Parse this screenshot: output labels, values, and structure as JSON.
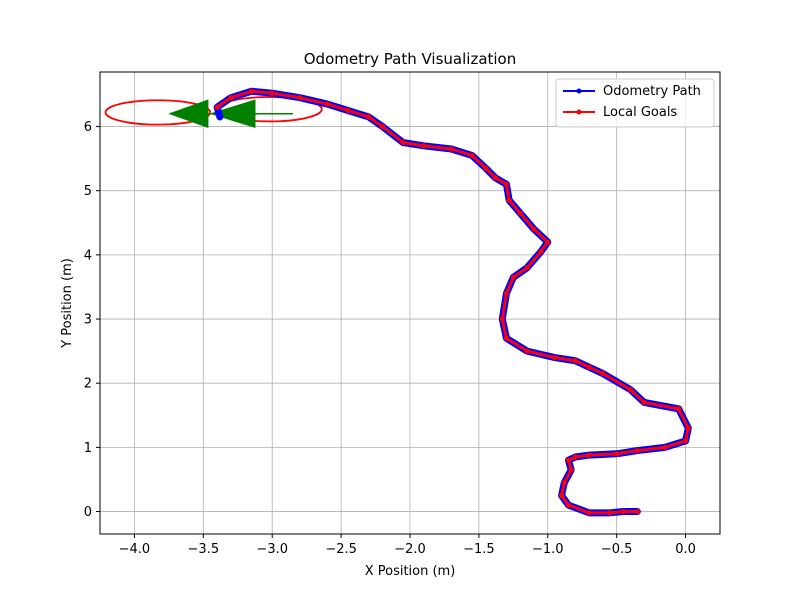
{
  "chart_data": {
    "type": "line",
    "title": "Odometry Path Visualization",
    "xlabel": "X Position (m)",
    "ylabel": "Y Position (m)",
    "xlim": [
      -4.25,
      0.25
    ],
    "ylim": [
      -0.35,
      6.85
    ],
    "xticks": [
      -4.0,
      -3.5,
      -3.0,
      -2.5,
      -2.0,
      -1.5,
      -1.0,
      -0.5,
      0.0
    ],
    "xtick_labels": [
      "−4.0",
      "−3.5",
      "−3.0",
      "−2.5",
      "−2.0",
      "−1.5",
      "−1.0",
      "−0.5",
      "0.0"
    ],
    "yticks": [
      0,
      1,
      2,
      3,
      4,
      5,
      6
    ],
    "ytick_labels": [
      "0",
      "1",
      "2",
      "3",
      "4",
      "5",
      "6"
    ],
    "grid": true,
    "legend_position": "top-right",
    "series": [
      {
        "name": "Odometry Path",
        "color": "#0000ff",
        "x": [
          -0.35,
          -0.45,
          -0.55,
          -0.7,
          -0.85,
          -0.9,
          -0.88,
          -0.83,
          -0.85,
          -0.8,
          -0.7,
          -0.5,
          -0.35,
          -0.15,
          0.0,
          0.02,
          -0.05,
          -0.3,
          -0.4,
          -0.6,
          -0.7,
          -0.8,
          -0.95,
          -1.15,
          -1.3,
          -1.33,
          -1.3,
          -1.25,
          -1.15,
          -1.05,
          -1.0,
          -1.1,
          -1.2,
          -1.28,
          -1.3,
          -1.38,
          -1.45,
          -1.55,
          -1.7,
          -1.9,
          -2.05,
          -2.2,
          -2.3,
          -2.45,
          -2.6,
          -2.8,
          -3.0,
          -3.15,
          -3.3,
          -3.4,
          -3.38
        ],
        "y": [
          0.0,
          0.0,
          -0.02,
          -0.02,
          0.1,
          0.25,
          0.45,
          0.65,
          0.8,
          0.85,
          0.88,
          0.9,
          0.95,
          1.0,
          1.1,
          1.3,
          1.6,
          1.7,
          1.9,
          2.15,
          2.25,
          2.35,
          2.4,
          2.5,
          2.7,
          3.0,
          3.4,
          3.65,
          3.8,
          4.05,
          4.2,
          4.4,
          4.65,
          4.85,
          5.1,
          5.2,
          5.35,
          5.55,
          5.65,
          5.7,
          5.75,
          6.0,
          6.15,
          6.25,
          6.35,
          6.45,
          6.52,
          6.55,
          6.45,
          6.3,
          6.15
        ]
      },
      {
        "name": "Local Goals",
        "color": "#ff0000",
        "x": [
          -0.35,
          -0.45,
          -0.55,
          -0.7,
          -0.85,
          -0.9,
          -0.88,
          -0.83,
          -0.85,
          -0.8,
          -0.7,
          -0.5,
          -0.35,
          -0.15,
          0.0,
          0.02,
          -0.05,
          -0.3,
          -0.4,
          -0.6,
          -0.7,
          -0.8,
          -0.95,
          -1.15,
          -1.3,
          -1.33,
          -1.3,
          -1.25,
          -1.15,
          -1.05,
          -1.0,
          -1.1,
          -1.2,
          -1.28,
          -1.3,
          -1.38,
          -1.45,
          -1.55,
          -1.7,
          -1.9,
          -2.05,
          -2.2,
          -2.3,
          -2.45,
          -2.6,
          -2.8,
          -3.0,
          -3.15,
          -3.3,
          -3.4
        ],
        "y": [
          0.0,
          0.0,
          -0.02,
          -0.02,
          0.1,
          0.25,
          0.45,
          0.65,
          0.8,
          0.85,
          0.88,
          0.9,
          0.95,
          1.0,
          1.1,
          1.3,
          1.6,
          1.7,
          1.9,
          2.15,
          2.25,
          2.35,
          2.4,
          2.5,
          2.7,
          3.0,
          3.4,
          3.65,
          3.8,
          4.05,
          4.2,
          4.4,
          4.65,
          4.85,
          5.1,
          5.2,
          5.35,
          5.55,
          5.65,
          5.7,
          5.75,
          6.0,
          6.15,
          6.25,
          6.35,
          6.45,
          6.52,
          6.55,
          6.45,
          6.3
        ]
      }
    ],
    "ellipses": [
      {
        "cx": -3.83,
        "cy": 6.22,
        "rx": 0.38,
        "ry": 0.19,
        "color": "#ff0000"
      },
      {
        "cx": -3.02,
        "cy": 6.27,
        "rx": 0.38,
        "ry": 0.19,
        "color": "#ff0000"
      }
    ],
    "arrows": [
      {
        "x1": -2.85,
        "y1": 6.2,
        "x2": -3.45,
        "y2": 6.2,
        "color": "#008000"
      },
      {
        "x1": -3.45,
        "y1": 6.2,
        "x2": -3.75,
        "y2": 6.2,
        "color": "#008000"
      }
    ]
  }
}
